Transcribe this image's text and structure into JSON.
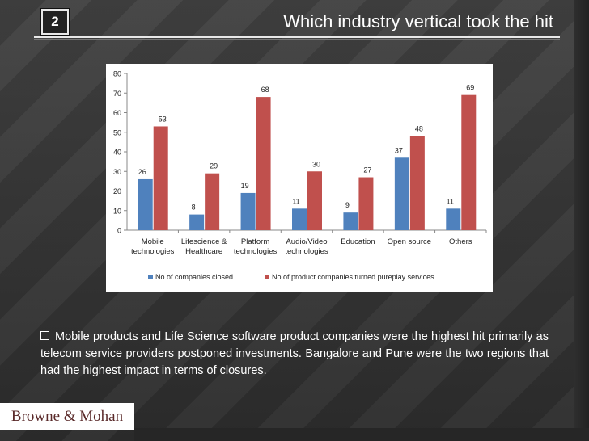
{
  "slide": {
    "number": "2",
    "title": "Which industry vertical took the hit",
    "bullet_text": "Mobile products and Life Science software product companies were the highest hit primarily as telecom service providers postponed investments.  Bangalore and Pune were the two regions that had the highest impact in terms of closures.",
    "logo_text": "Browne & Mohan"
  },
  "colors": {
    "background": "#3b3b3b",
    "series1": "#4f81bd",
    "series2": "#c0504d"
  },
  "chart_data": {
    "type": "bar",
    "categories": [
      [
        "Mobile",
        "technologies"
      ],
      [
        "Lifescience &",
        "Healthcare"
      ],
      [
        "Platform",
        "technologies"
      ],
      [
        "Audio/Video",
        "technologies"
      ],
      [
        "Education"
      ],
      [
        "Open source"
      ],
      [
        "Others"
      ]
    ],
    "series": [
      {
        "name": "No of companies closed",
        "values": [
          26,
          8,
          19,
          11,
          9,
          37,
          11
        ]
      },
      {
        "name": "No of product companies turned pureplay services",
        "values": [
          53,
          29,
          68,
          30,
          27,
          48,
          69
        ]
      }
    ],
    "ylim": [
      0,
      80
    ],
    "yticks": [
      0,
      10,
      20,
      30,
      40,
      50,
      60,
      70,
      80
    ],
    "legend_position": "bottom",
    "grid": false
  }
}
